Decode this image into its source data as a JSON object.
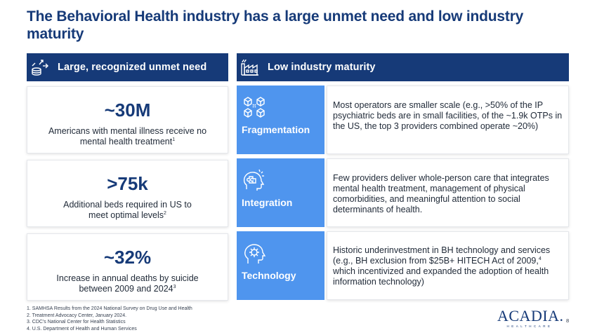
{
  "title": "The Behavioral Health industry has a large unmet need and low industry maturity",
  "left_header": {
    "label": "Large, recognized unmet need",
    "icon": "data-analytics-icon"
  },
  "right_header": {
    "label": "Low industry maturity",
    "icon": "factory-icon"
  },
  "stats": [
    {
      "value": "~30M",
      "desc": "Americans with mental illness receive no mental health treatment",
      "ref": "1"
    },
    {
      "value": ">75k",
      "desc": "Additional beds required in US to meet optimal levels",
      "ref": "2"
    },
    {
      "value": "~32%",
      "desc": "Increase in annual deaths by suicide between 2009 and 2024",
      "ref": "3"
    }
  ],
  "maturity": [
    {
      "label": "Fragmentation",
      "icon": "cubes-network-icon",
      "text": "Most operators are smaller scale (e.g., >50% of the IP psychiatric beds are in small facilities, of the ~1.9k OTPs in the US, the top 3 providers combined operate ~20%)"
    },
    {
      "label": "Integration",
      "icon": "puzzle-head-icon",
      "text": "Few providers deliver whole-person care that integrates mental health treatment, management of physical comorbidities, and meaningful attention to social determinants of health."
    },
    {
      "label": "Technology",
      "icon": "gear-head-icon",
      "text_a": "Historic underinvestment in BH technology and services (e.g., BH exclusion from $25B+ HITECH Act of 2009,",
      "ref": "4",
      "text_b": " which incentivized and expanded the adoption of health information technology)"
    }
  ],
  "footnotes": [
    "1. SAMHSA Results from the 2024 National Survey on Drug Use and Health",
    "2. Treatment Advocacy Center, January 2024.",
    "3. CDC's National Center for Health Statistics",
    "4. U.S. Department of Health and Human Services"
  ],
  "logo": {
    "name": "ACADIA.",
    "sub": "HEALTHCARE"
  },
  "page_number": "8",
  "colors": {
    "navy": "#163a78",
    "tile_blue": "#4f95ee"
  }
}
